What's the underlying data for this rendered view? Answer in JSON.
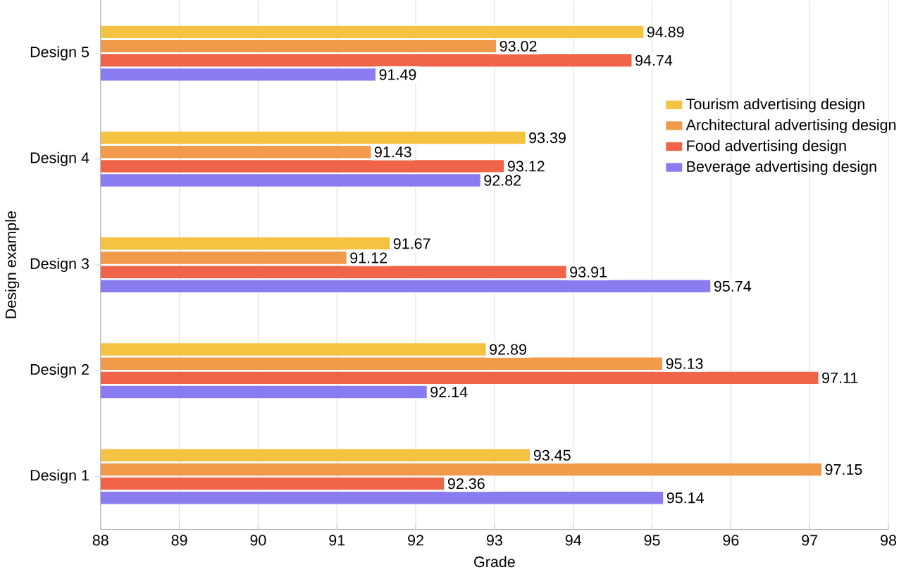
{
  "chart_data": {
    "type": "bar",
    "orientation": "horizontal",
    "xlabel": "Grade",
    "ylabel": "Design example",
    "categories": [
      "Design 5",
      "Design 4",
      "Design 3",
      "Design 2",
      "Design 1"
    ],
    "series": [
      {
        "name": "Tourism advertising design",
        "color": "#f5c242",
        "values": [
          94.89,
          93.39,
          91.67,
          92.89,
          93.45
        ]
      },
      {
        "name": "Architectural advertising design",
        "color": "#f09a4a",
        "values": [
          93.02,
          91.43,
          91.12,
          95.13,
          97.15
        ]
      },
      {
        "name": "Food advertising design",
        "color": "#f0654a",
        "values": [
          94.74,
          93.12,
          93.91,
          97.11,
          92.36
        ]
      },
      {
        "name": "Beverage advertising design",
        "color": "#8a7cf0",
        "values": [
          91.49,
          92.82,
          95.74,
          92.14,
          95.14
        ]
      }
    ],
    "xlim": [
      88,
      98
    ],
    "xticks": [
      88,
      89,
      90,
      91,
      92,
      93,
      94,
      95,
      96,
      97,
      98
    ],
    "grid": "x",
    "legend": "right",
    "data_labels": true
  }
}
